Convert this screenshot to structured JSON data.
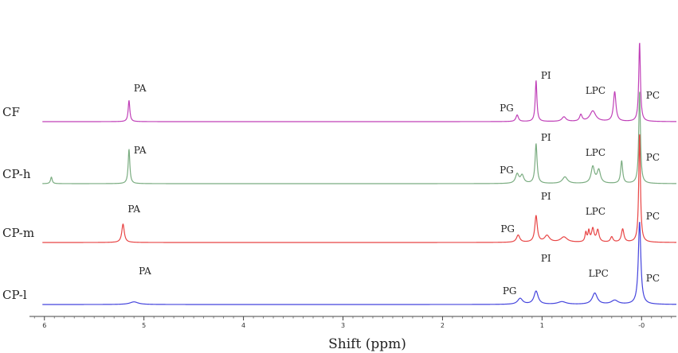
{
  "chart_data": {
    "type": "line",
    "title": "",
    "xlabel": "Shift (ppm)",
    "ylabel": "",
    "x_reversed": true,
    "xlim": [
      6.15,
      -0.35
    ],
    "x_ticks": [
      6,
      5,
      4,
      3,
      2,
      1,
      0
    ],
    "x_tick_labels": [
      "6",
      "5",
      "4",
      "3",
      "2",
      "1",
      "-0"
    ],
    "grid": false,
    "legend": "none",
    "series": [
      {
        "name": "CF",
        "color": "#c040b8",
        "peaks": [
          {
            "x": 5.15,
            "h": 0.32,
            "w": 0.01
          },
          {
            "x": 1.25,
            "h": 0.1,
            "w": 0.015
          },
          {
            "x": 1.06,
            "h": 0.62,
            "w": 0.01
          },
          {
            "x": 0.78,
            "h": 0.07,
            "w": 0.025
          },
          {
            "x": 0.61,
            "h": 0.1,
            "w": 0.015
          },
          {
            "x": 0.49,
            "h": 0.16,
            "w": 0.035
          },
          {
            "x": 0.27,
            "h": 0.45,
            "w": 0.015
          },
          {
            "x": 0.02,
            "h": 1.2,
            "w": 0.01
          }
        ],
        "labels": [
          {
            "text": "PA",
            "x": 5.15
          },
          {
            "text": "PG",
            "x": 1.25
          },
          {
            "text": "PI",
            "x": 1.06
          },
          {
            "text": "LPC",
            "x": 0.5
          },
          {
            "text": "PC",
            "x": 0.02
          }
        ]
      },
      {
        "name": "CP-h",
        "color": "#7aac80",
        "peaks": [
          {
            "x": 5.93,
            "h": 0.1,
            "w": 0.01
          },
          {
            "x": 5.15,
            "h": 0.52,
            "w": 0.01
          },
          {
            "x": 1.25,
            "h": 0.14,
            "w": 0.02
          },
          {
            "x": 1.2,
            "h": 0.12,
            "w": 0.02
          },
          {
            "x": 1.06,
            "h": 0.6,
            "w": 0.012
          },
          {
            "x": 0.77,
            "h": 0.1,
            "w": 0.03
          },
          {
            "x": 0.49,
            "h": 0.25,
            "w": 0.02
          },
          {
            "x": 0.43,
            "h": 0.2,
            "w": 0.02
          },
          {
            "x": 0.2,
            "h": 0.34,
            "w": 0.012
          },
          {
            "x": 0.02,
            "h": 1.4,
            "w": 0.01
          }
        ],
        "labels": [
          {
            "text": "PA",
            "x": 5.15
          },
          {
            "text": "PG",
            "x": 1.25
          },
          {
            "text": "PI",
            "x": 1.06
          },
          {
            "text": "LPC",
            "x": 0.5
          },
          {
            "text": "PC",
            "x": 0.02
          }
        ]
      },
      {
        "name": "CP-m",
        "color": "#e84545",
        "peaks": [
          {
            "x": 5.21,
            "h": 0.28,
            "w": 0.015
          },
          {
            "x": 1.24,
            "h": 0.11,
            "w": 0.02
          },
          {
            "x": 1.06,
            "h": 0.4,
            "w": 0.015
          },
          {
            "x": 0.95,
            "h": 0.1,
            "w": 0.03
          },
          {
            "x": 0.78,
            "h": 0.08,
            "w": 0.04
          },
          {
            "x": 0.56,
            "h": 0.14,
            "w": 0.01
          },
          {
            "x": 0.53,
            "h": 0.16,
            "w": 0.01
          },
          {
            "x": 0.49,
            "h": 0.2,
            "w": 0.015
          },
          {
            "x": 0.44,
            "h": 0.18,
            "w": 0.015
          },
          {
            "x": 0.3,
            "h": 0.08,
            "w": 0.015
          },
          {
            "x": 0.19,
            "h": 0.2,
            "w": 0.015
          },
          {
            "x": 0.02,
            "h": 1.65,
            "w": 0.01
          }
        ],
        "labels": [
          {
            "text": "PA",
            "x": 5.21
          },
          {
            "text": "PG",
            "x": 1.24
          },
          {
            "text": "PI",
            "x": 1.06
          },
          {
            "text": "LPC",
            "x": 0.5
          },
          {
            "text": "PC",
            "x": 0.02
          }
        ]
      },
      {
        "name": "CP-l",
        "color": "#4444dd",
        "peaks": [
          {
            "x": 5.1,
            "h": 0.04,
            "w": 0.05
          },
          {
            "x": 1.22,
            "h": 0.09,
            "w": 0.03
          },
          {
            "x": 1.06,
            "h": 0.2,
            "w": 0.025
          },
          {
            "x": 0.8,
            "h": 0.04,
            "w": 0.05
          },
          {
            "x": 0.47,
            "h": 0.17,
            "w": 0.03
          },
          {
            "x": 0.27,
            "h": 0.06,
            "w": 0.04
          },
          {
            "x": 0.02,
            "h": 1.25,
            "w": 0.015
          }
        ],
        "labels": [
          {
            "text": "PA",
            "x": 5.1
          },
          {
            "text": "PG",
            "x": 1.22
          },
          {
            "text": "PI",
            "x": 1.06
          },
          {
            "text": "LPC",
            "x": 0.47
          },
          {
            "text": "PC",
            "x": 0.02
          }
        ]
      }
    ]
  }
}
